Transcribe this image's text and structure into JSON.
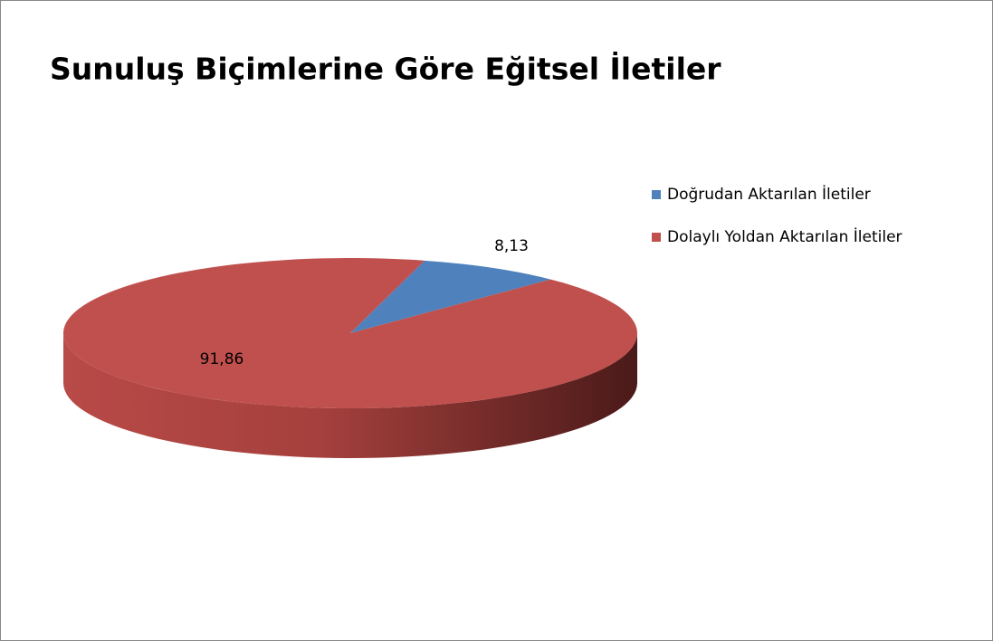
{
  "chart_data": {
    "type": "pie",
    "title": "Sunuluş Biçimlerine Göre Eğitsel İletiler",
    "categories": [
      "Doğrudan Aktarılan İletiler",
      "Dolaylı Yoldan Aktarılan İletiler"
    ],
    "values": [
      8.13,
      91.86
    ],
    "value_labels": [
      "8,13",
      "91,86"
    ],
    "colors": [
      "#4f81bd",
      "#c0504d"
    ],
    "legend": "right"
  }
}
